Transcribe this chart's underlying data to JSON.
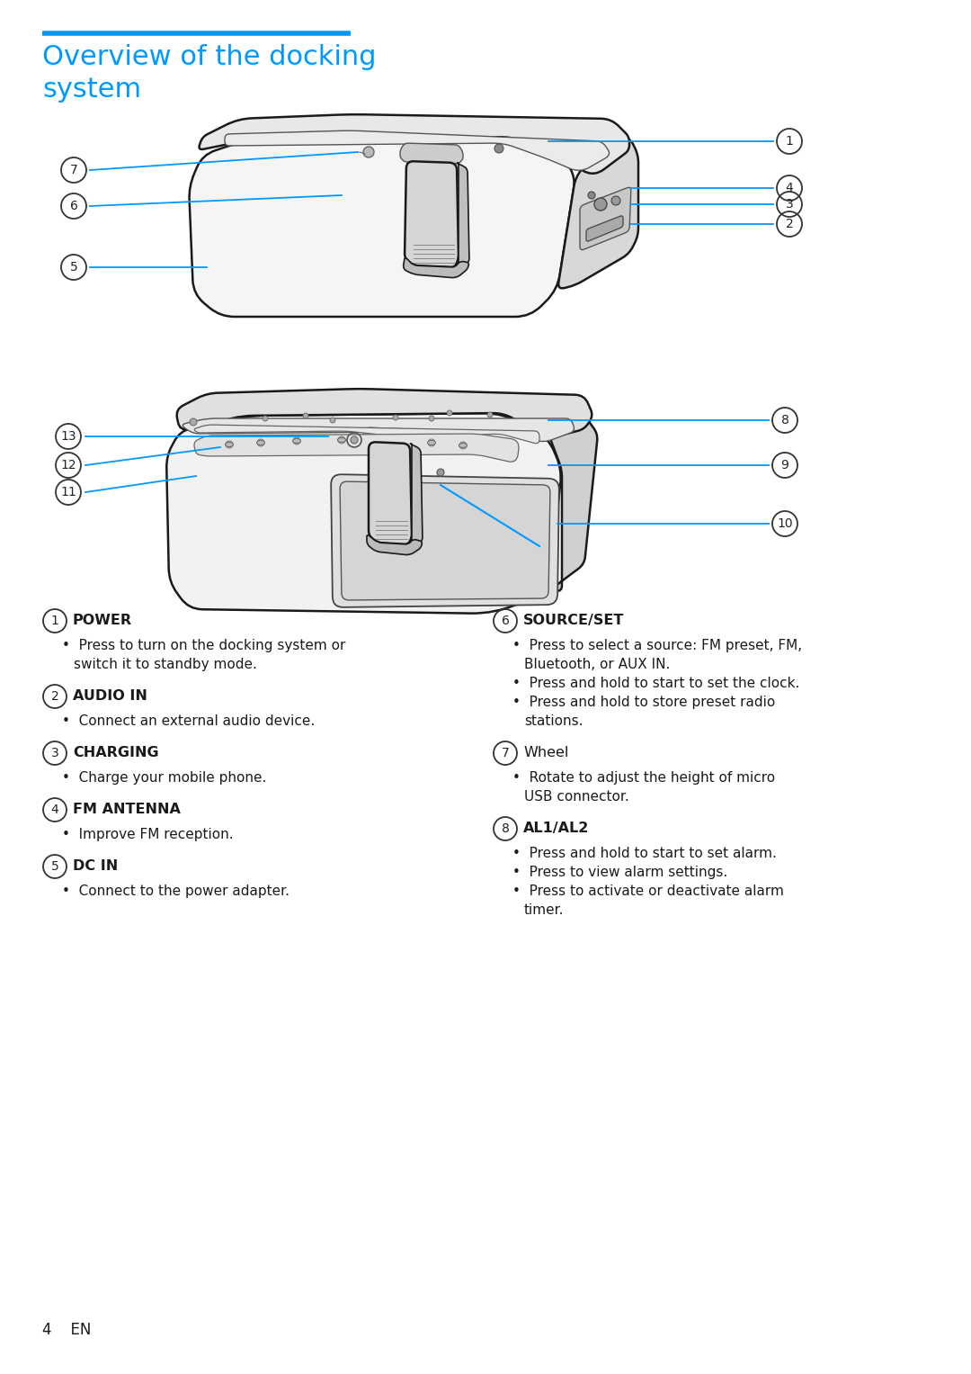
{
  "title_line1": "Overview of the docking",
  "title_line2": "system",
  "title_color": "#0099ff",
  "title_bar_color": "#0099ff",
  "bg_color": "#ffffff",
  "line_color": "#0099ff",
  "circle_color": "#222222",
  "title_fontsize": 22,
  "body_fontsize": 11.5,
  "items_left": [
    {
      "num": "1",
      "title": "POWER",
      "bold": true,
      "bullets": [
        "Press to turn on the docking system or\nswitch it to standby mode."
      ]
    },
    {
      "num": "2",
      "title": "AUDIO IN",
      "bold": true,
      "bullets": [
        "Connect an external audio device."
      ]
    },
    {
      "num": "3",
      "title": "CHARGING",
      "bold": true,
      "bullets": [
        "Charge your mobile phone."
      ]
    },
    {
      "num": "4",
      "title": "FM ANTENNA",
      "bold": true,
      "bullets": [
        "Improve FM reception."
      ]
    },
    {
      "num": "5",
      "title": "DC IN",
      "bold": true,
      "bullets": [
        "Connect to the power adapter."
      ]
    }
  ],
  "items_right": [
    {
      "num": "6",
      "title": "SOURCE/SET",
      "bold": true,
      "bullets": [
        "Press to select a source: FM preset, FM,\nBluetooth, or AUX IN.",
        "Press and hold to start to set the clock.",
        "Press and hold to store preset radio\nstations."
      ]
    },
    {
      "num": "7",
      "title": "Wheel",
      "bold": false,
      "bullets": [
        "Rotate to adjust the height of micro\nUSB connector."
      ]
    },
    {
      "num": "8",
      "title": "AL1/AL2",
      "bold": true,
      "bullets": [
        "Press and hold to start to set alarm.",
        "Press to view alarm settings.",
        "Press to activate or deactivate alarm\ntimer."
      ]
    }
  ],
  "footer": "4    EN",
  "footer_fontsize": 12
}
